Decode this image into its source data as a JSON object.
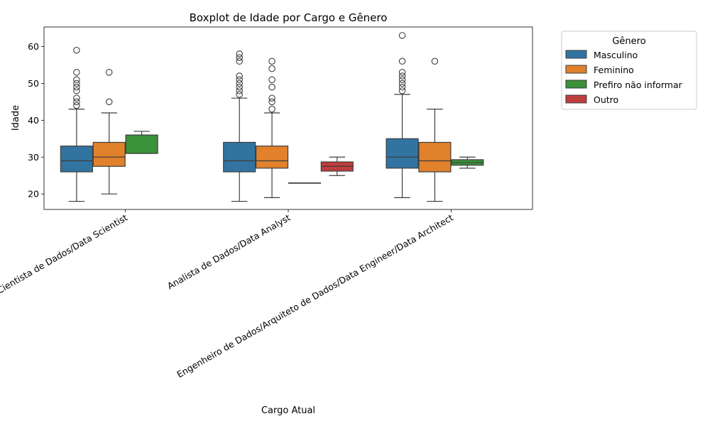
{
  "chart_data": {
    "type": "boxplot",
    "title": "Boxplot de Idade por Cargo e Gênero",
    "xlabel": "Cargo Atual",
    "ylabel": "Idade",
    "ylim": [
      15.8,
      65.3
    ],
    "yticks": [
      20,
      30,
      40,
      50,
      60
    ],
    "categories": [
      "Cientista de Dados/Data Scientist",
      "Analista de Dados/Data Analyst",
      "Engenheiro de Dados/Arquiteto de Dados/Data Engineer/Data Architect"
    ],
    "legend": {
      "title": "Gênero",
      "placement": "outside-top-right"
    },
    "series": [
      {
        "name": "Masculino",
        "color": "#3274a1",
        "boxes": [
          {
            "whisker_low": 18,
            "q1": 26,
            "median": 29,
            "q3": 33,
            "whisker_high": 43,
            "outliers": [
              44,
              45,
              46,
              48,
              49,
              50,
              51,
              53,
              59
            ]
          },
          {
            "whisker_low": 18,
            "q1": 26,
            "median": 29,
            "q3": 34,
            "whisker_high": 46,
            "outliers": [
              47,
              48,
              49,
              50,
              51,
              52,
              56,
              57,
              58
            ]
          },
          {
            "whisker_low": 19,
            "q1": 27,
            "median": 30,
            "q3": 35,
            "whisker_high": 47,
            "outliers": [
              48,
              49,
              50,
              51,
              52,
              53,
              56,
              63
            ]
          }
        ]
      },
      {
        "name": "Feminino",
        "color": "#e1812c",
        "boxes": [
          {
            "whisker_low": 20,
            "q1": 27.5,
            "median": 30,
            "q3": 34,
            "whisker_high": 42,
            "outliers": [
              45,
              53
            ]
          },
          {
            "whisker_low": 19,
            "q1": 27,
            "median": 29,
            "q3": 33,
            "whisker_high": 42,
            "outliers": [
              43,
              45,
              46,
              49,
              51,
              54,
              56
            ]
          },
          {
            "whisker_low": 18,
            "q1": 26,
            "median": 29,
            "q3": 34,
            "whisker_high": 43,
            "outliers": [
              56
            ]
          }
        ]
      },
      {
        "name": "Prefiro não informar",
        "color": "#3a923a",
        "boxes": [
          {
            "whisker_low": 31,
            "q1": 31,
            "median": 31,
            "q3": 36,
            "whisker_high": 37,
            "outliers": []
          },
          {
            "whisker_low": 23,
            "q1": 23,
            "median": 23,
            "q3": 23,
            "whisker_high": 23,
            "outliers": []
          },
          {
            "whisker_low": 27,
            "q1": 27.8,
            "median": 28.5,
            "q3": 29.3,
            "whisker_high": 30,
            "outliers": []
          }
        ]
      },
      {
        "name": "Outro",
        "color": "#c03d3e",
        "boxes": [
          null,
          {
            "whisker_low": 25,
            "q1": 26.2,
            "median": 27.5,
            "q3": 28.7,
            "whisker_high": 30,
            "outliers": []
          },
          null
        ]
      }
    ]
  }
}
